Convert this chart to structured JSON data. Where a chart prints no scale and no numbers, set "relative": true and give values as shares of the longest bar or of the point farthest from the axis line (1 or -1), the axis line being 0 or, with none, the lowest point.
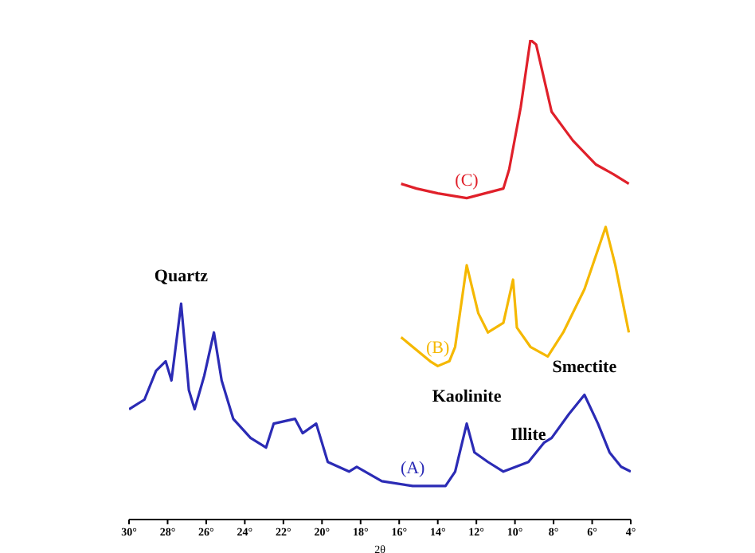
{
  "chart_data": {
    "type": "line",
    "xlabel": "2θ",
    "relative": true,
    "tick_labels": "x",
    "legend": false,
    "grid": false,
    "marker": "none",
    "line_style": "solid",
    "xlim": [
      30,
      4
    ],
    "xticks": [
      {
        "value": 30,
        "label": "30°"
      },
      {
        "value": 28,
        "label": "28°"
      },
      {
        "value": 26,
        "label": "26°"
      },
      {
        "value": 24,
        "label": "24°"
      },
      {
        "value": 22,
        "label": "22°"
      },
      {
        "value": 20,
        "label": "20°"
      },
      {
        "value": 18,
        "label": "18°"
      },
      {
        "value": 16,
        "label": "16°"
      },
      {
        "value": 14,
        "label": "14°"
      },
      {
        "value": 12,
        "label": "12°"
      },
      {
        "value": 10,
        "label": "10°"
      },
      {
        "value": 8,
        "label": "8°"
      },
      {
        "value": 6,
        "label": "6°"
      },
      {
        "value": 4,
        "label": "4°"
      }
    ],
    "series": [
      {
        "name": "(A)",
        "color": "#2b2bb5",
        "x": [
          30.0,
          29.2,
          28.6,
          28.1,
          27.8,
          27.3,
          26.9,
          26.6,
          26.1,
          25.6,
          25.2,
          24.6,
          23.7,
          22.9,
          22.5,
          21.4,
          21.0,
          20.3,
          19.7,
          18.6,
          18.2,
          16.9,
          15.3,
          13.6,
          13.1,
          12.5,
          12.1,
          11.4,
          10.6,
          9.3,
          8.5,
          8.1,
          7.2,
          6.4,
          5.7,
          5.1,
          4.5,
          4.0
        ],
        "values": [
          0.23,
          0.25,
          0.31,
          0.33,
          0.29,
          0.45,
          0.27,
          0.23,
          0.3,
          0.39,
          0.29,
          0.21,
          0.17,
          0.15,
          0.2,
          0.21,
          0.18,
          0.2,
          0.12,
          0.1,
          0.11,
          0.08,
          0.07,
          0.07,
          0.1,
          0.2,
          0.14,
          0.12,
          0.1,
          0.12,
          0.16,
          0.17,
          0.22,
          0.26,
          0.2,
          0.14,
          0.11,
          0.1
        ]
      },
      {
        "name": "(B)",
        "color": "#f5b800",
        "x": [
          15.9,
          14.4,
          14.0,
          13.4,
          13.1,
          12.5,
          11.9,
          11.4,
          10.6,
          10.1,
          9.9,
          9.2,
          8.3,
          7.5,
          6.4,
          5.3,
          4.8,
          4.1
        ],
        "values": [
          0.38,
          0.33,
          0.32,
          0.33,
          0.36,
          0.53,
          0.43,
          0.39,
          0.41,
          0.5,
          0.4,
          0.36,
          0.34,
          0.39,
          0.48,
          0.61,
          0.53,
          0.39
        ]
      },
      {
        "name": "(C)",
        "color": "#e0202a",
        "x": [
          15.9,
          15.1,
          14.0,
          12.5,
          10.6,
          10.3,
          9.7,
          9.2,
          8.9,
          8.5,
          8.1,
          7.0,
          5.8,
          4.9,
          4.1
        ],
        "values": [
          0.7,
          0.69,
          0.68,
          0.67,
          0.69,
          0.73,
          0.86,
          1.0,
          0.99,
          0.92,
          0.85,
          0.79,
          0.74,
          0.72,
          0.7
        ]
      }
    ],
    "annotations": [
      {
        "text": "Quartz",
        "x": 27.3,
        "y": 0.45
      },
      {
        "text": "Kaolinite",
        "x": 12.5,
        "y": 0.2
      },
      {
        "text": "Illite",
        "x": 9.3,
        "y": 0.12
      },
      {
        "text": "Smectite",
        "x": 6.4,
        "y": 0.26
      }
    ]
  }
}
